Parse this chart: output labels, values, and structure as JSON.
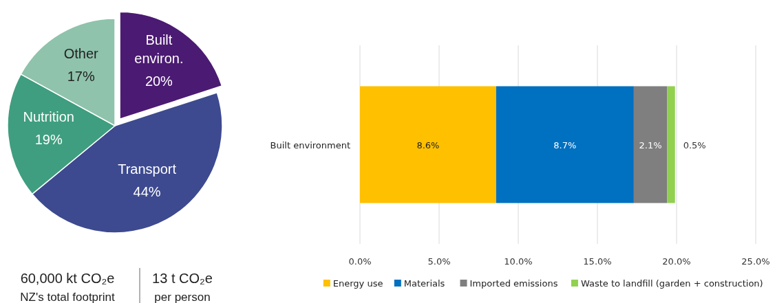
{
  "chart_data": [
    {
      "type": "pie",
      "categories": [
        "Built environ.",
        "Transport",
        "Nutrition",
        "Other"
      ],
      "values": [
        20,
        44,
        19,
        17
      ],
      "value_labels": [
        "20%",
        "44%",
        "19%",
        "17%"
      ],
      "colors": [
        "#4b1a72",
        "#3d4a8f",
        "#3f9e7f",
        "#8fc3ac"
      ],
      "annotations": [
        "60,000 kt CO₂e",
        "NZ's total footprint",
        "13 t CO₂e",
        "per person"
      ]
    },
    {
      "type": "bar",
      "orientation": "horizontal",
      "stacked": true,
      "categories": [
        "Built environment"
      ],
      "series": [
        {
          "name": "Energy use",
          "color": "#ffc000",
          "values": [
            8.6
          ],
          "value_labels": [
            "8.6%"
          ]
        },
        {
          "name": "Materials",
          "color": "#0070c0",
          "values": [
            8.7
          ],
          "value_labels": [
            "8.7%"
          ]
        },
        {
          "name": "Imported emissions",
          "color": "#7f7f7f",
          "values": [
            2.1
          ],
          "value_labels": [
            "2.1%"
          ]
        },
        {
          "name": "Waste to landfill (garden + construction)",
          "color": "#92d050",
          "values": [
            0.5
          ],
          "value_labels": [
            "0.5%"
          ]
        }
      ],
      "xlim": [
        0,
        25
      ],
      "xticks": [
        {
          "value": 0,
          "label": "0.0%"
        },
        {
          "value": 5,
          "label": "5.0%"
        },
        {
          "value": 10,
          "label": "10.0%"
        },
        {
          "value": 15,
          "label": "15.0%"
        },
        {
          "value": 20,
          "label": "20.0%"
        },
        {
          "value": 25,
          "label": "25.0%"
        }
      ],
      "grid": "x",
      "legend": "bottom"
    }
  ]
}
